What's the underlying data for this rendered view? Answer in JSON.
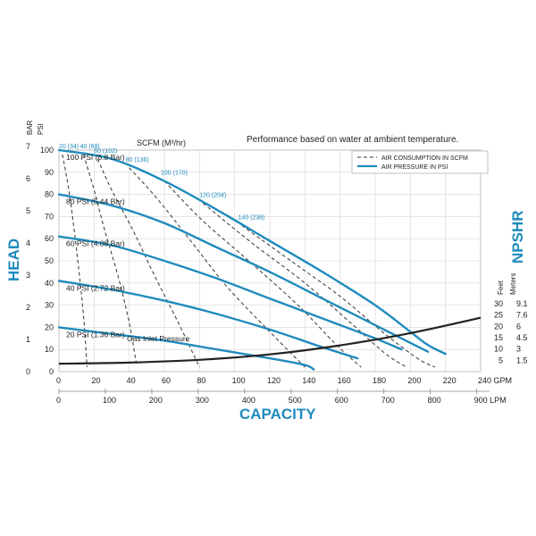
{
  "chart_data": {
    "type": "line",
    "title": "Performance based on water at ambient temperature.",
    "xlabel": "CAPACITY",
    "ylabel": "HEAD",
    "y2label": "NPSHR",
    "x_units_primary": "GPM",
    "x_units_secondary": "LPM",
    "y_units_primary": "PSI",
    "y_units_secondary": "BAR",
    "y2_units_feet": "Feet",
    "y2_units_meters": "Meters",
    "air_units": "SCFM (M³/hr)",
    "gas_inlet_note": "Gas Inlet Pressure",
    "xlim": [
      0,
      240
    ],
    "ylim": [
      0,
      100
    ],
    "x_ticks_gpm": [
      0,
      20,
      40,
      60,
      80,
      100,
      120,
      140,
      160,
      180,
      200,
      220,
      240
    ],
    "x_tick_labels_gpm": [
      "0",
      "20",
      "40",
      "60",
      "80",
      "100",
      "120",
      "140",
      "160",
      "180",
      "200",
      "220",
      "240 GPM"
    ],
    "x_ticks_lpm": [
      0,
      100,
      200,
      300,
      400,
      500,
      600,
      700,
      800,
      900
    ],
    "x_tick_labels_lpm": [
      "0",
      "100",
      "200",
      "300",
      "400",
      "500",
      "600",
      "700",
      "800",
      "900 LPM"
    ],
    "y_ticks_psi": [
      0,
      10,
      20,
      30,
      40,
      50,
      60,
      70,
      80,
      90,
      100
    ],
    "y_tick_labels_psi": [
      "0",
      "10",
      "20",
      "30",
      "40",
      "50",
      "60",
      "70",
      "80",
      "90",
      "100"
    ],
    "y_ticks_bar": [
      0,
      1,
      2,
      3,
      4,
      5,
      6,
      7
    ],
    "y2_ticks_feet": [
      5,
      10,
      15,
      20,
      25,
      30
    ],
    "y2_tick_labels_feet": [
      "5",
      "10",
      "15",
      "20",
      "25",
      "30"
    ],
    "y2_tick_labels_meters": [
      "1.5",
      "3",
      "4.5",
      "6",
      "7.6",
      "9.1"
    ],
    "grid": true,
    "legend": {
      "position": "top-right",
      "entries": [
        {
          "label": "AIR CONSUMPTION IN SCFM",
          "style": "dashed",
          "color": "#333333"
        },
        {
          "label": "AIR PRESSURE IN PSI",
          "style": "solid",
          "color": "#1f8bbd"
        }
      ]
    },
    "series": [
      {
        "name": "100 PSI (6.8 Bar)",
        "color": "#1f8bbd",
        "x": [
          0,
          30,
          60,
          90,
          120,
          150,
          180,
          200,
          210,
          220
        ],
        "y": [
          100,
          96,
          86,
          73,
          59,
          45,
          30,
          18,
          12,
          8
        ]
      },
      {
        "name": "80 PSI (5.44 Bar)",
        "color": "#1f8bbd",
        "x": [
          0,
          30,
          60,
          90,
          120,
          150,
          180,
          200,
          210
        ],
        "y": [
          80,
          75,
          67,
          56,
          45,
          33,
          21,
          13,
          9
        ]
      },
      {
        "name": "60 PSI (4.08 Bar)",
        "color": "#1f8bbd",
        "x": [
          0,
          30,
          60,
          90,
          120,
          150,
          180,
          195
        ],
        "y": [
          61,
          57,
          50,
          42,
          33,
          24,
          15,
          10
        ]
      },
      {
        "name": "40 PSI (2.72 Bar)",
        "color": "#1f8bbd",
        "x": [
          0,
          30,
          60,
          90,
          120,
          150,
          170
        ],
        "y": [
          41,
          37,
          32,
          26,
          19,
          11,
          6
        ]
      },
      {
        "name": "20 PSI (1.36 Bar)",
        "color": "#1f8bbd",
        "x": [
          0,
          30,
          60,
          90,
          120,
          140,
          145
        ],
        "y": [
          20,
          17,
          14,
          10,
          6,
          3,
          1
        ]
      }
    ],
    "air_consumption": [
      {
        "label": "20 (34)",
        "x": [
          2,
          6,
          10,
          14,
          16
        ],
        "y": [
          98,
          80,
          55,
          25,
          2
        ]
      },
      {
        "label": "40 (68)",
        "x": [
          14,
          20,
          26,
          34,
          40,
          44
        ],
        "y": [
          98,
          82,
          64,
          42,
          22,
          4
        ]
      },
      {
        "label": "60 (102)",
        "x": [
          22,
          30,
          42,
          54,
          68,
          80
        ],
        "y": [
          96,
          82,
          64,
          44,
          22,
          2
        ]
      },
      {
        "label": "80 (136)",
        "x": [
          40,
          56,
          76,
          96,
          120,
          140
        ],
        "y": [
          92,
          78,
          58,
          38,
          18,
          2
        ]
      },
      {
        "label": "100 (170)",
        "x": [
          60,
          82,
          108,
          136,
          158,
          172
        ],
        "y": [
          86,
          68,
          50,
          30,
          12,
          2
        ]
      },
      {
        "label": "120 (204)",
        "x": [
          82,
          110,
          140,
          166,
          186,
          198
        ],
        "y": [
          76,
          58,
          40,
          22,
          8,
          2
        ]
      },
      {
        "label": "140 (238)",
        "x": [
          104,
          132,
          160,
          184,
          204,
          214
        ],
        "y": [
          66,
          50,
          34,
          18,
          6,
          2
        ]
      }
    ],
    "npshr": {
      "name": "NPSHR",
      "color": "#222222",
      "x": [
        0,
        40,
        80,
        120,
        160,
        200,
        240
      ],
      "y_feet": [
        3.5,
        4.0,
        5.2,
        7.6,
        11.6,
        17.0,
        23.8
      ]
    }
  }
}
